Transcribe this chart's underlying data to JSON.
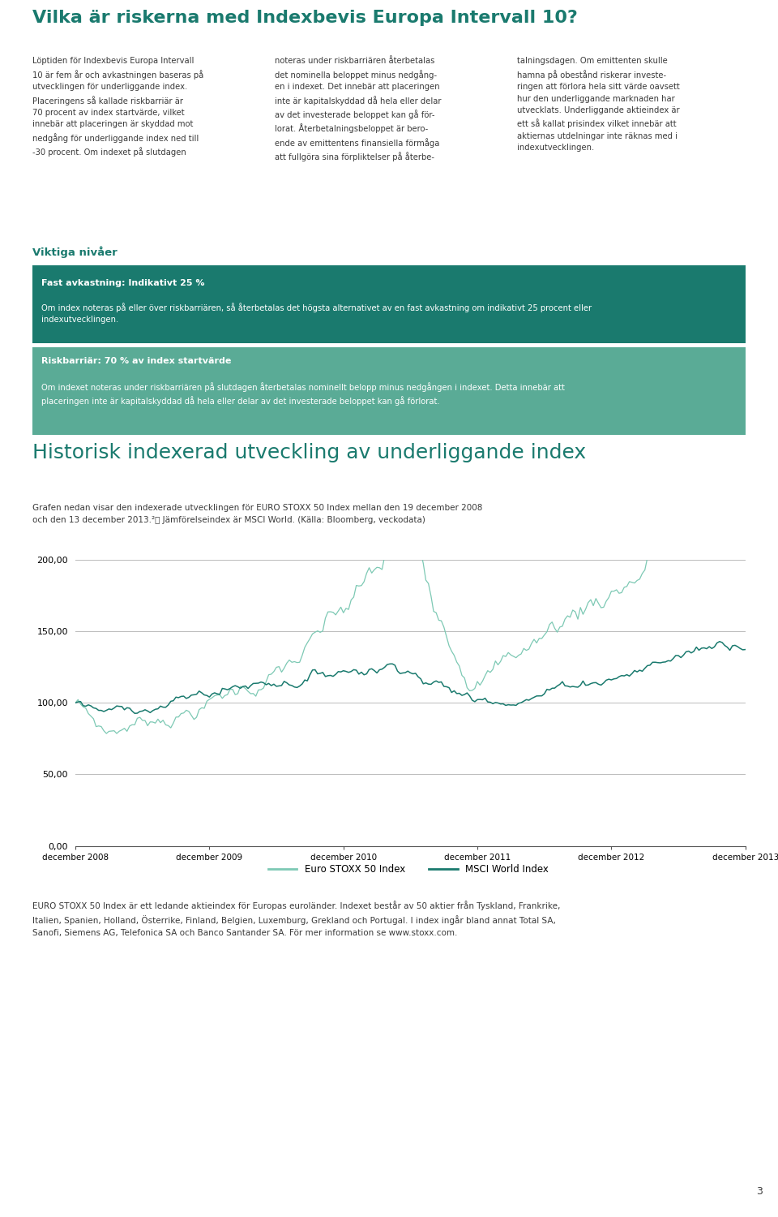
{
  "title": "Vilka är riskerna med Indexbevis Europa Intervall 10?",
  "title_color": "#1a7a6e",
  "title_fontsize": 16,
  "body_text_col1": "Löptiden för Indexbevis Europa Intervall\n10 är fem år och avkastningen baseras på\nutvecklingen för underliggande index.\nPlaceringens så kallade riskbarriär är\n70 procent av index startvärde, vilket\ninnebär att placeringen är skyddad mot\nnedgång för underliggande index ned till\n-30 procent. Om indexet på slutdagen",
  "body_text_col2": "noteras under riskbarriären återbetalas\ndet nominella beloppet minus nedgång-\nen i indexet. Det innebär att placeringen\ninte är kapitalskyddad då hela eller delar\nav det investerade beloppet kan gå för-\nlorat. Återbetalningsbeloppet är bero-\nende av emittentens finansiella förmåga\natt fullgöra sina förpliktelser på återbe-",
  "body_text_col3": "talningsdagen. Om emittenten skulle\nhamna på obestånd riskerar investe-\nringen att förlora hela sitt värde oavsett\nhur den underliggande marknaden har\nutvecklats. Underliggande aktieindex är\nett så kallat prisindex vilket innebär att\naktiernas utdelningar inte räknas med i\nindexutvecklingen.",
  "viktiga_label": "Viktiga nivåer",
  "viktiga_color": "#1a7a6e",
  "box1_bg": "#1a7a6e",
  "box1_title": "Fast avkastning: Indikativt 25 %",
  "box1_text": "Om index noteras på eller över riskbarriären, så återbetalas det högsta alternativet av en fast avkastning om indikativt 25 procent eller\nindexutvecklingen.",
  "box2_bg": "#5aab96",
  "box2_title": "Riskbarriär: 70 % av index startvärde",
  "box2_text": "Om indexet noteras under riskbarriären på slutdagen återbetalas nominellt belopp minus nedgången i indexet. Detta innebär att\nplaceringen inte är kapitalskyddad då hela eller delar av det investerade beloppet kan gå förlorat.",
  "chart_title": "Historisk indexerad utveckling av underliggande index",
  "chart_title_color": "#1a7a6e",
  "chart_title_fontsize": 18,
  "chart_subtitle_line1": "Grafen nedan visar den indexerade utvecklingen för EURO STOXX 50 Index mellan den 19 december 2008",
  "chart_subtitle_line2": "och den 13 december 2013.²⦾ Jämförelseindex är MSCI World. (Källa: Bloomberg, veckodata)",
  "ylim": [
    0,
    200
  ],
  "yticks": [
    0,
    50,
    100,
    150,
    200
  ],
  "ytick_labels": [
    "0,00",
    "50,00",
    "100,00",
    "150,00",
    "200,00"
  ],
  "xtick_labels": [
    "december 2008",
    "december 2009",
    "december 2010",
    "december 2011",
    "december 2012",
    "december 2013"
  ],
  "legend1": "Euro STOXX 50 Index",
  "legend2": "MSCI World Index",
  "line1_color": "#7dc9b4",
  "line2_color": "#1a7a6e",
  "footer_text": "EURO STOXX 50 Index är ett ledande aktieindex för Europas euroländer. Indexet består av 50 aktier från Tyskland, Frankrike,\nItalien, Spanien, Holland, Österrike, Finland, Belgien, Luxemburg, Grekland och Portugal. I index ingår bland annat Total SA,\nSanofi, Siemens AG, Telefonica SA och Banco Santander SA. För mer information se www.stoxx.com.",
  "page_number": "3",
  "bg_color": "#ffffff",
  "text_color": "#3a3a3a"
}
